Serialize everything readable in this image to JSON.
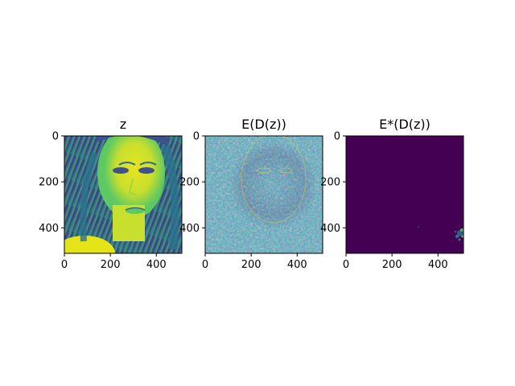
{
  "chart_data": [
    {
      "type": "heatmap",
      "title": "z",
      "xlabel": "",
      "ylabel": "",
      "xlim": [
        0,
        511
      ],
      "ylim": [
        511,
        0
      ],
      "xticks": [
        0,
        200,
        400
      ],
      "yticks": [
        0,
        200,
        400
      ],
      "colormap": "viridis",
      "content": "grayscale portrait of a woman's face with long hair"
    },
    {
      "type": "heatmap",
      "title": "E(D(z))",
      "xlabel": "",
      "ylabel": "",
      "xlim": [
        0,
        511
      ],
      "ylim": [
        511,
        0
      ],
      "xticks": [
        0,
        200,
        400
      ],
      "yticks": [
        0,
        200,
        400
      ],
      "colormap": "viridis",
      "content": "noisy edge-like texture faintly outlining the face"
    },
    {
      "type": "heatmap",
      "title": "E*(D(z))",
      "xlabel": "",
      "ylabel": "",
      "xlim": [
        0,
        511
      ],
      "ylim": [
        511,
        0
      ],
      "xticks": [
        0,
        200,
        400
      ],
      "yticks": [
        0,
        200,
        400
      ],
      "colormap": "viridis",
      "content": "nearly uniform dark purple with a small bright cluster near the bottom-right edge"
    }
  ],
  "colors": {
    "viridis_low": "#440154",
    "viridis_mid": "#21918c",
    "viridis_high": "#fde725"
  }
}
